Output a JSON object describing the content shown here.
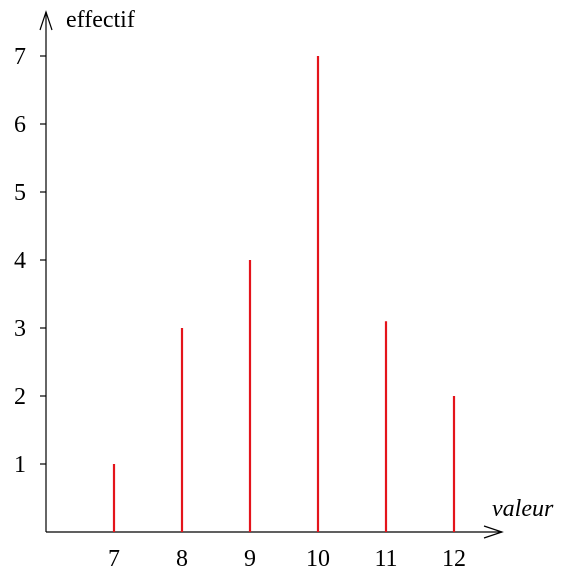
{
  "chart_data": {
    "type": "bar",
    "subtype": "stem",
    "title": "",
    "xlabel": "valeur",
    "ylabel": "effectif",
    "x": [
      7,
      8,
      9,
      10,
      11,
      12
    ],
    "values": [
      1,
      3,
      4,
      7,
      3.1,
      2
    ],
    "x_ticks": [
      "7",
      "8",
      "9",
      "10",
      "11",
      "12"
    ],
    "y_ticks": [
      "1",
      "2",
      "3",
      "4",
      "5",
      "6",
      "7"
    ],
    "xlim": [
      6,
      12.5
    ],
    "ylim": [
      0,
      7.6
    ],
    "grid": false,
    "legend": "none",
    "colors": {
      "stem": "#e4141b",
      "axis": "#000000"
    }
  }
}
